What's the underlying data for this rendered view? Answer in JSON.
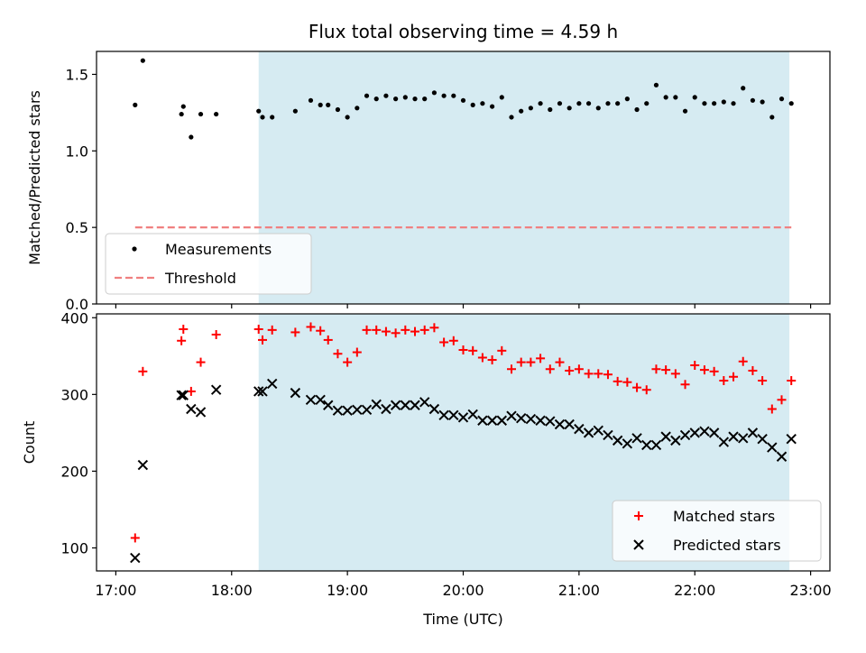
{
  "chart_data": [
    {
      "type": "scatter",
      "title": "Flux total observing time = 4.59 h",
      "ylabel": "Matched/Predicted stars",
      "xlim": [
        "16:50",
        "23:10"
      ],
      "ylim": [
        0,
        1.65
      ],
      "yticks": [
        "0.0",
        "0.5",
        "1.0",
        "1.5"
      ],
      "yticks_values": [
        0,
        0.5,
        1.0,
        1.5
      ],
      "shaded_span": [
        "18:14",
        "22:49"
      ],
      "shade_color": "#add8e6",
      "legend_position": "lower-left",
      "series": [
        {
          "name": "Measurements",
          "marker": "dot",
          "color": "#000000",
          "points": [
            [
              "17:10",
              1.3
            ],
            [
              "17:14",
              1.59
            ],
            [
              "17:34",
              1.24
            ],
            [
              "17:35",
              1.29
            ],
            [
              "17:39",
              1.09
            ],
            [
              "17:44",
              1.24
            ],
            [
              "17:52",
              1.24
            ],
            [
              "18:14",
              1.26
            ],
            [
              "18:16",
              1.22
            ],
            [
              "18:21",
              1.22
            ],
            [
              "18:33",
              1.26
            ],
            [
              "18:41",
              1.33
            ],
            [
              "18:46",
              1.3
            ],
            [
              "18:50",
              1.3
            ],
            [
              "18:55",
              1.27
            ],
            [
              "19:00",
              1.22
            ],
            [
              "19:05",
              1.28
            ],
            [
              "19:10",
              1.36
            ],
            [
              "19:15",
              1.34
            ],
            [
              "19:20",
              1.36
            ],
            [
              "19:25",
              1.34
            ],
            [
              "19:30",
              1.35
            ],
            [
              "19:35",
              1.34
            ],
            [
              "19:40",
              1.34
            ],
            [
              "19:45",
              1.38
            ],
            [
              "19:50",
              1.36
            ],
            [
              "19:55",
              1.36
            ],
            [
              "20:00",
              1.33
            ],
            [
              "20:05",
              1.3
            ],
            [
              "20:10",
              1.31
            ],
            [
              "20:15",
              1.29
            ],
            [
              "20:20",
              1.35
            ],
            [
              "20:25",
              1.22
            ],
            [
              "20:30",
              1.26
            ],
            [
              "20:35",
              1.28
            ],
            [
              "20:40",
              1.31
            ],
            [
              "20:45",
              1.27
            ],
            [
              "20:50",
              1.31
            ],
            [
              "20:55",
              1.28
            ],
            [
              "21:00",
              1.31
            ],
            [
              "21:05",
              1.31
            ],
            [
              "21:10",
              1.28
            ],
            [
              "21:15",
              1.31
            ],
            [
              "21:20",
              1.31
            ],
            [
              "21:25",
              1.34
            ],
            [
              "21:30",
              1.27
            ],
            [
              "21:35",
              1.31
            ],
            [
              "21:40",
              1.43
            ],
            [
              "21:45",
              1.35
            ],
            [
              "21:50",
              1.35
            ],
            [
              "21:55",
              1.26
            ],
            [
              "22:00",
              1.35
            ],
            [
              "22:05",
              1.31
            ],
            [
              "22:10",
              1.31
            ],
            [
              "22:15",
              1.32
            ],
            [
              "22:20",
              1.31
            ],
            [
              "22:25",
              1.41
            ],
            [
              "22:30",
              1.33
            ],
            [
              "22:35",
              1.32
            ],
            [
              "22:40",
              1.22
            ],
            [
              "22:45",
              1.34
            ],
            [
              "22:50",
              1.31
            ]
          ]
        },
        {
          "name": "Threshold",
          "line": "dashed",
          "color": "#f08080",
          "points": [
            [
              "17:10",
              0.5
            ],
            [
              "22:50",
              0.5
            ]
          ]
        }
      ]
    },
    {
      "type": "scatter",
      "xlabel": "Time (UTC)",
      "ylabel": "Count",
      "xlim": [
        "16:50",
        "23:10"
      ],
      "ylim": [
        70,
        405
      ],
      "xticks": [
        "17:00",
        "18:00",
        "19:00",
        "20:00",
        "21:00",
        "22:00",
        "23:00"
      ],
      "yticks": [
        "100",
        "200",
        "300",
        "400"
      ],
      "yticks_values": [
        100,
        200,
        300,
        400
      ],
      "shaded_span": [
        "18:14",
        "22:49"
      ],
      "shade_color": "#add8e6",
      "legend_position": "lower-right",
      "series": [
        {
          "name": "Matched stars",
          "marker": "plus",
          "color": "#ff0000",
          "points": [
            [
              "17:10",
              113
            ],
            [
              "17:14",
              330
            ],
            [
              "17:34",
              370
            ],
            [
              "17:35",
              385
            ],
            [
              "17:39",
              304
            ],
            [
              "17:44",
              342
            ],
            [
              "17:52",
              378
            ],
            [
              "18:14",
              385
            ],
            [
              "18:16",
              371
            ],
            [
              "18:21",
              384
            ],
            [
              "18:33",
              381
            ],
            [
              "18:41",
              388
            ],
            [
              "18:46",
              383
            ],
            [
              "18:50",
              371
            ],
            [
              "18:55",
              353
            ],
            [
              "19:00",
              342
            ],
            [
              "19:05",
              355
            ],
            [
              "19:10",
              384
            ],
            [
              "19:15",
              384
            ],
            [
              "19:20",
              382
            ],
            [
              "19:25",
              380
            ],
            [
              "19:30",
              384
            ],
            [
              "19:35",
              382
            ],
            [
              "19:40",
              384
            ],
            [
              "19:45",
              387
            ],
            [
              "19:50",
              368
            ],
            [
              "19:55",
              370
            ],
            [
              "20:00",
              358
            ],
            [
              "20:05",
              357
            ],
            [
              "20:10",
              348
            ],
            [
              "20:15",
              345
            ],
            [
              "20:20",
              357
            ],
            [
              "20:25",
              333
            ],
            [
              "20:30",
              342
            ],
            [
              "20:35",
              342
            ],
            [
              "20:40",
              347
            ],
            [
              "20:45",
              333
            ],
            [
              "20:50",
              342
            ],
            [
              "20:55",
              331
            ],
            [
              "21:00",
              333
            ],
            [
              "21:05",
              327
            ],
            [
              "21:10",
              327
            ],
            [
              "21:15",
              326
            ],
            [
              "21:20",
              317
            ],
            [
              "21:25",
              316
            ],
            [
              "21:30",
              309
            ],
            [
              "21:35",
              306
            ],
            [
              "21:40",
              333
            ],
            [
              "21:45",
              332
            ],
            [
              "21:50",
              327
            ],
            [
              "21:55",
              313
            ],
            [
              "22:00",
              338
            ],
            [
              "22:05",
              332
            ],
            [
              "22:10",
              330
            ],
            [
              "22:15",
              318
            ],
            [
              "22:20",
              323
            ],
            [
              "22:25",
              343
            ],
            [
              "22:30",
              331
            ],
            [
              "22:35",
              318
            ],
            [
              "22:40",
              281
            ],
            [
              "22:45",
              293
            ],
            [
              "22:50",
              318
            ]
          ]
        },
        {
          "name": "Predicted stars",
          "marker": "x",
          "color": "#000000",
          "points": [
            [
              "17:10",
              87
            ],
            [
              "17:14",
              208
            ],
            [
              "17:34",
              299
            ],
            [
              "17:35",
              299
            ],
            [
              "17:39",
              281
            ],
            [
              "17:44",
              277
            ],
            [
              "17:52",
              306
            ],
            [
              "18:14",
              304
            ],
            [
              "18:16",
              304
            ],
            [
              "18:21",
              314
            ],
            [
              "18:33",
              302
            ],
            [
              "18:41",
              293
            ],
            [
              "18:46",
              293
            ],
            [
              "18:50",
              286
            ],
            [
              "18:55",
              279
            ],
            [
              "19:00",
              279
            ],
            [
              "19:05",
              280
            ],
            [
              "19:10",
              280
            ],
            [
              "19:15",
              287
            ],
            [
              "19:20",
              281
            ],
            [
              "19:25",
              286
            ],
            [
              "19:30",
              286
            ],
            [
              "19:35",
              286
            ],
            [
              "19:40",
              290
            ],
            [
              "19:45",
              281
            ],
            [
              "19:50",
              273
            ],
            [
              "19:55",
              273
            ],
            [
              "20:00",
              270
            ],
            [
              "20:05",
              274
            ],
            [
              "20:10",
              266
            ],
            [
              "20:15",
              266
            ],
            [
              "20:20",
              266
            ],
            [
              "20:25",
              272
            ],
            [
              "20:30",
              269
            ],
            [
              "20:35",
              268
            ],
            [
              "20:40",
              266
            ],
            [
              "20:45",
              265
            ],
            [
              "20:50",
              261
            ],
            [
              "20:55",
              261
            ],
            [
              "21:00",
              255
            ],
            [
              "21:05",
              250
            ],
            [
              "21:10",
              253
            ],
            [
              "21:15",
              247
            ],
            [
              "21:20",
              240
            ],
            [
              "21:25",
              236
            ],
            [
              "21:30",
              243
            ],
            [
              "21:35",
              234
            ],
            [
              "21:40",
              234
            ],
            [
              "21:45",
              245
            ],
            [
              "21:50",
              240
            ],
            [
              "21:55",
              247
            ],
            [
              "22:00",
              250
            ],
            [
              "22:05",
              252
            ],
            [
              "22:10",
              250
            ],
            [
              "22:15",
              238
            ],
            [
              "22:20",
              245
            ],
            [
              "22:25",
              243
            ],
            [
              "22:30",
              250
            ],
            [
              "22:35",
              242
            ],
            [
              "22:40",
              231
            ],
            [
              "22:45",
              219
            ],
            [
              "22:50",
              242
            ]
          ]
        }
      ]
    }
  ]
}
